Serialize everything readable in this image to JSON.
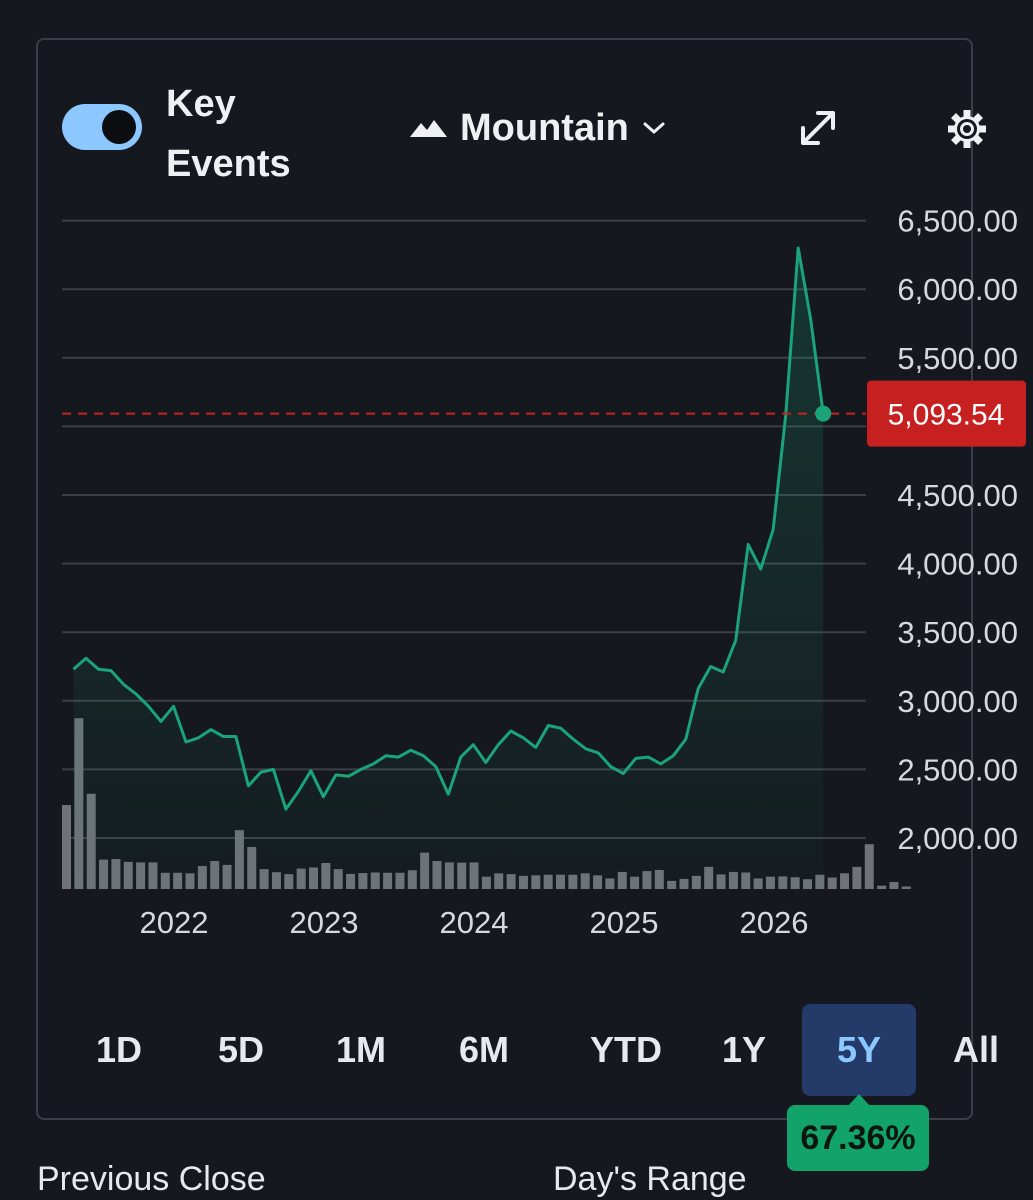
{
  "header": {
    "key_events_label": "Key Events",
    "key_events_on": true,
    "chart_type_label": "Mountain",
    "icons": [
      "mountain-icon",
      "chevron-down-icon",
      "expand-icon",
      "gear-icon"
    ]
  },
  "colors": {
    "background": "#15181e",
    "line": "#1ba37a",
    "volume_bar": "#6f7277",
    "current_price_badge": "#c62020",
    "toggle": "#8cc8ff",
    "active_range": "#243b6a",
    "change_badge": "#12a36a"
  },
  "chart_data": {
    "type": "line",
    "x_tick_labels": [
      "2022",
      "2023",
      "2024",
      "2025",
      "2026"
    ],
    "y_tick_labels": [
      "6,500.00",
      "6,000.00",
      "5,500.00",
      "4,500.00",
      "4,000.00",
      "3,500.00",
      "3,000.00",
      "2,500.00",
      "2,000.00"
    ],
    "y_ticks": [
      6500,
      6000,
      5500,
      4500,
      4000,
      3500,
      3000,
      2500,
      2000
    ],
    "ylim": [
      1650,
      6650
    ],
    "grid": true,
    "current_price": 5093.54,
    "current_price_label": "5,093.54",
    "price_series": {
      "start": 2021.33,
      "step_years": 0.0833,
      "values": [
        3230,
        3310,
        3230,
        3220,
        3120,
        3050,
        2960,
        2850,
        2960,
        2700,
        2730,
        2790,
        2740,
        2740,
        2380,
        2480,
        2500,
        2210,
        2340,
        2490,
        2300,
        2460,
        2450,
        2500,
        2540,
        2600,
        2590,
        2640,
        2600,
        2520,
        2320,
        2590,
        2680,
        2550,
        2680,
        2780,
        2730,
        2660,
        2820,
        2800,
        2720,
        2650,
        2620,
        2520,
        2470,
        2580,
        2590,
        2540,
        2600,
        2720,
        3090,
        3250,
        3210,
        3440,
        4140,
        3960,
        4250,
        5080,
        6300,
        5780,
        5093.54
      ]
    },
    "volume_series": {
      "unit": "relative",
      "values": [
        3.0,
        6.1,
        3.4,
        1.05,
        1.07,
        0.97,
        0.95,
        0.95,
        0.58,
        0.58,
        0.56,
        0.82,
        1.0,
        0.86,
        2.1,
        1.5,
        0.71,
        0.6,
        0.53,
        0.73,
        0.77,
        0.93,
        0.71,
        0.54,
        0.57,
        0.59,
        0.58,
        0.58,
        0.67,
        1.3,
        1.0,
        0.95,
        0.94,
        0.95,
        0.44,
        0.56,
        0.53,
        0.47,
        0.49,
        0.51,
        0.51,
        0.51,
        0.56,
        0.49,
        0.38,
        0.61,
        0.44,
        0.64,
        0.68,
        0.29,
        0.36,
        0.47,
        0.79,
        0.52,
        0.61,
        0.59,
        0.38,
        0.44,
        0.45,
        0.42,
        0.35,
        0.51,
        0.41,
        0.56,
        0.79,
        1.6,
        0.12,
        0.25,
        0.09
      ]
    }
  },
  "ranges": [
    {
      "label": "1D",
      "active": false
    },
    {
      "label": "5D",
      "active": false
    },
    {
      "label": "1M",
      "active": false
    },
    {
      "label": "6M",
      "active": false
    },
    {
      "label": "YTD",
      "active": false
    },
    {
      "label": "1Y",
      "active": false
    },
    {
      "label": "5Y",
      "active": true
    },
    {
      "label": "All",
      "active": false
    }
  ],
  "change_badge": "67.36%",
  "stats": {
    "previous_close_label": "Previous Close",
    "days_range_label": "Day's Range"
  }
}
